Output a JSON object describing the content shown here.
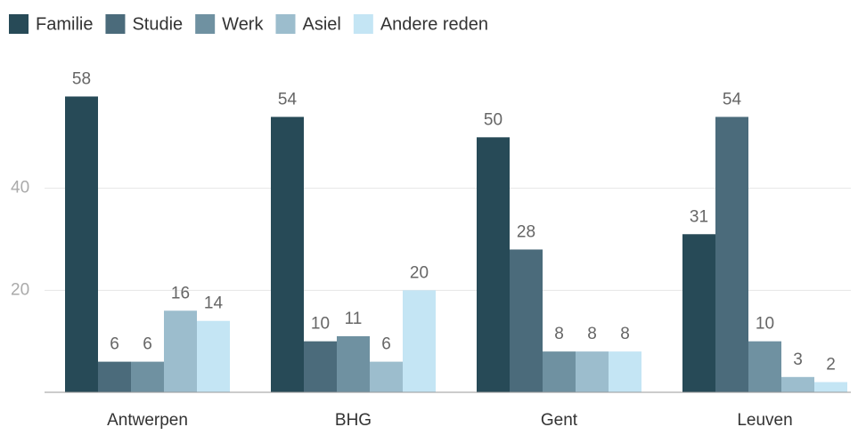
{
  "chart_data": {
    "type": "grouped_bar",
    "categories": [
      "Antwerpen",
      "BHG",
      "Gent",
      "Leuven"
    ],
    "series": [
      {
        "name": "Familie",
        "color": "#274a57",
        "values": [
          58,
          54,
          50,
          31
        ]
      },
      {
        "name": "Studie",
        "color": "#4b6b7b",
        "values": [
          6,
          10,
          28,
          54
        ]
      },
      {
        "name": "Werk",
        "color": "#6f91a1",
        "values": [
          6,
          11,
          8,
          10
        ]
      },
      {
        "name": "Asiel",
        "color": "#9cbdcd",
        "values": [
          16,
          6,
          8,
          3
        ]
      },
      {
        "name": "Andere reden",
        "color": "#c4e5f4",
        "values": [
          14,
          20,
          8,
          2
        ]
      }
    ],
    "ylim": [
      0,
      60
    ],
    "yticks": [
      20,
      40
    ],
    "grid": true
  }
}
